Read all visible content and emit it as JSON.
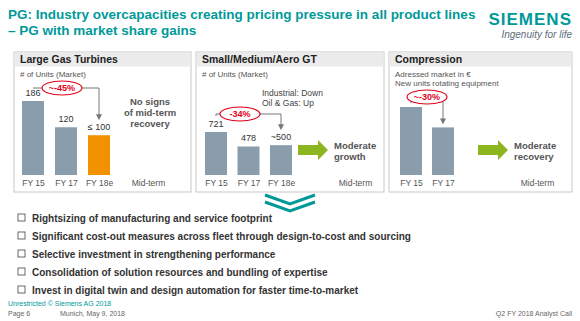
{
  "slide": {
    "title": "PG: Industry overcapacities creating pricing pressure in all product lines – PG with market share gains",
    "logo": "SIEMENS",
    "tagline": "Ingenuity for life",
    "bullets": [
      "Rightsizing of manufacturing and service footprint",
      "Significant cost-out measures across fleet through design-to-cost and sourcing",
      "Selective investment in strengthening performance",
      "Consolidation of solution resources and bundling of expertise",
      "Invest in digital twin and design automation for faster time-to-market"
    ],
    "footer": {
      "classification": "Unrestricted © Siemens AG 2018",
      "page": "Page 6",
      "place_date": "Munich, May 9, 2018",
      "event": "Q2 FY 2018 Analyst Call"
    }
  },
  "chart_data": [
    {
      "type": "bar",
      "title": "Large Gas Turbines",
      "subtitle": [
        "# of Units (Market)"
      ],
      "categories": [
        "FY 15",
        "FY 17",
        "FY 18e",
        "Mid-term"
      ],
      "values": [
        186,
        120,
        100,
        null
      ],
      "value_labels": [
        "186",
        "120",
        "≤ 100",
        null
      ],
      "colors": [
        "#8a9dac",
        "#8a9dac",
        "#f39200",
        null
      ],
      "data_labels": true,
      "change_label": "~-45%",
      "outlook": [
        "No signs",
        "of mid-term",
        "recovery"
      ]
    },
    {
      "type": "bar",
      "title": "Small/Medium/Aero GT",
      "subtitle": [
        "# of Units (Market)"
      ],
      "categories": [
        "FY 15",
        "FY 17",
        "FY 18e",
        "Mid-term"
      ],
      "values": [
        721,
        478,
        500,
        null
      ],
      "value_labels": [
        "721",
        "478",
        "~500",
        null
      ],
      "color": "#8a9dac",
      "data_labels": true,
      "change_label": "-34%",
      "segments_note": [
        "Industrial: Down",
        "Oil & Gas: Up"
      ],
      "outlook": [
        "Moderate",
        "growth"
      ]
    },
    {
      "type": "bar",
      "title": "Compression",
      "subtitle": [
        "Adressed market in €",
        "New units rotating equipment"
      ],
      "categories": [
        "FY 15",
        "FY 17",
        "Mid-term"
      ],
      "values": [
        100,
        70,
        null
      ],
      "color": "#8a9dac",
      "data_labels": false,
      "change_label": "~-30%",
      "outlook": [
        "Moderate",
        "recovery"
      ]
    }
  ]
}
